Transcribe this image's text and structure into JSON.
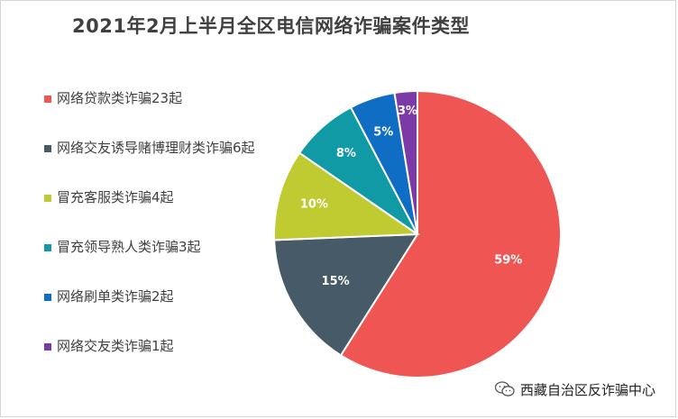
{
  "title": "2021年2月上半月全区电信网络诈骗案件类型",
  "watermark": {
    "text": "西藏自治区反诈骗中心",
    "icon": "wechat-icon"
  },
  "chart_data": {
    "type": "pie",
    "title": "2021年2月上半月全区电信网络诈骗案件类型",
    "legend_position": "left",
    "slices": [
      {
        "label": "网络贷款类诈骗23起",
        "value": 23,
        "percent_label": "59%",
        "color": "#ef5552"
      },
      {
        "label": "网络交友诱导赌博理财类诈骗6起",
        "value": 6,
        "percent_label": "15%",
        "color": "#465a67"
      },
      {
        "label": "冒充客服类诈骗4起",
        "value": 4,
        "percent_label": "10%",
        "color": "#bfcb31"
      },
      {
        "label": "冒充领导熟人类诈骗3起",
        "value": 3,
        "percent_label": "8%",
        "color": "#0f9aa6"
      },
      {
        "label": "网络刷单类诈骗2起",
        "value": 2,
        "percent_label": "5%",
        "color": "#0f6ec4"
      },
      {
        "label": "网络交友类诈骗1起",
        "value": 1,
        "percent_label": "3%",
        "color": "#7b3aa6"
      }
    ]
  }
}
